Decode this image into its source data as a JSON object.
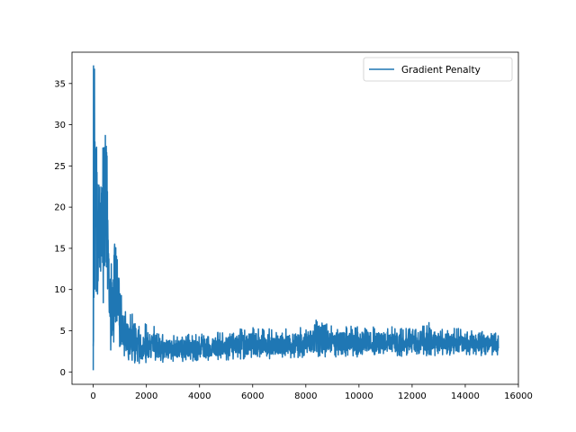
{
  "chart_data": {
    "type": "line",
    "title": "",
    "xlabel": "",
    "ylabel": "",
    "xlim": [
      -800,
      16000
    ],
    "ylim": [
      -1.5,
      38.8
    ],
    "x_ticks": [
      0,
      2000,
      4000,
      6000,
      8000,
      10000,
      12000,
      14000,
      16000
    ],
    "x_tick_labels": [
      "0",
      "2000",
      "4000",
      "6000",
      "8000",
      "10000",
      "12000",
      "14000",
      "16000"
    ],
    "y_ticks": [
      0,
      5,
      10,
      15,
      20,
      25,
      30,
      35
    ],
    "y_tick_labels": [
      "0",
      "5",
      "10",
      "15",
      "20",
      "25",
      "30",
      "35"
    ],
    "grid": false,
    "legend_position": "top-right",
    "series": [
      {
        "name": "Gradient Penalty",
        "color": "#1f77b4",
        "x_start": 0,
        "x_end": 15250,
        "points": 15250,
        "envelope": [
          {
            "x": 0,
            "low": 0.2,
            "high": 12.0
          },
          {
            "x": 30,
            "low": 8.5,
            "high": 37.2
          },
          {
            "x": 100,
            "low": 8.5,
            "high": 34.0
          },
          {
            "x": 200,
            "low": 7.0,
            "high": 27.5
          },
          {
            "x": 300,
            "low": 7.5,
            "high": 30.5
          },
          {
            "x": 400,
            "low": 8.0,
            "high": 34.5
          },
          {
            "x": 500,
            "low": 8.0,
            "high": 35.0
          },
          {
            "x": 600,
            "low": 2.5,
            "high": 14.0
          },
          {
            "x": 700,
            "low": 2.5,
            "high": 13.0
          },
          {
            "x": 800,
            "low": 3.5,
            "high": 18.5
          },
          {
            "x": 900,
            "low": 3.5,
            "high": 19.2
          },
          {
            "x": 1000,
            "low": 3.0,
            "high": 12.0
          },
          {
            "x": 1100,
            "low": 2.0,
            "high": 9.0
          },
          {
            "x": 1200,
            "low": 1.5,
            "high": 7.5
          },
          {
            "x": 1400,
            "low": 1.0,
            "high": 7.0
          },
          {
            "x": 1600,
            "low": 1.0,
            "high": 7.2
          },
          {
            "x": 1800,
            "low": 0.8,
            "high": 5.5
          },
          {
            "x": 2000,
            "low": 0.8,
            "high": 6.0
          },
          {
            "x": 2300,
            "low": 1.0,
            "high": 5.5
          },
          {
            "x": 2600,
            "low": 1.0,
            "high": 4.6
          },
          {
            "x": 3000,
            "low": 1.2,
            "high": 4.5
          },
          {
            "x": 4000,
            "low": 1.3,
            "high": 4.6
          },
          {
            "x": 5000,
            "low": 1.4,
            "high": 5.0
          },
          {
            "x": 6000,
            "low": 1.5,
            "high": 5.5
          },
          {
            "x": 7000,
            "low": 1.6,
            "high": 5.2
          },
          {
            "x": 8000,
            "low": 1.7,
            "high": 5.5
          },
          {
            "x": 8500,
            "low": 1.7,
            "high": 6.6
          },
          {
            "x": 9000,
            "low": 1.8,
            "high": 5.5
          },
          {
            "x": 10000,
            "low": 1.8,
            "high": 5.6
          },
          {
            "x": 11000,
            "low": 1.9,
            "high": 5.6
          },
          {
            "x": 12000,
            "low": 1.9,
            "high": 5.3
          },
          {
            "x": 12700,
            "low": 1.9,
            "high": 6.2
          },
          {
            "x": 13000,
            "low": 2.0,
            "high": 5.3
          },
          {
            "x": 14000,
            "low": 1.9,
            "high": 5.3
          },
          {
            "x": 15250,
            "low": 2.0,
            "high": 5.0
          }
        ]
      }
    ]
  }
}
